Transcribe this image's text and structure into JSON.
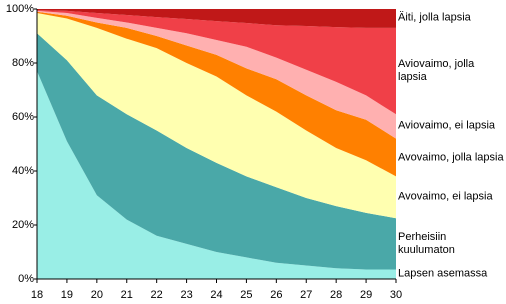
{
  "chart_data": {
    "type": "stacked_area",
    "x": [
      18,
      19,
      20,
      21,
      22,
      23,
      24,
      25,
      26,
      27,
      28,
      29,
      30
    ],
    "xlim": [
      18,
      30
    ],
    "xticks": [
      18,
      19,
      20,
      21,
      22,
      23,
      24,
      25,
      26,
      27,
      28,
      29,
      30
    ],
    "ylim": [
      0,
      100
    ],
    "yticks": [
      {
        "value": 0,
        "label": "0%"
      },
      {
        "value": 20,
        "label": "20%"
      },
      {
        "value": 40,
        "label": "40%"
      },
      {
        "value": 60,
        "label": "60%"
      },
      {
        "value": 80,
        "label": "80%"
      },
      {
        "value": 100,
        "label": "100%"
      }
    ],
    "series": [
      {
        "name": "Lapsen asemassa",
        "color": "#99eee6",
        "values": [
          77,
          51,
          31,
          22,
          16,
          13,
          10,
          8,
          6,
          5,
          4,
          3.5,
          3.5
        ]
      },
      {
        "name": "Perheisiin kuulumaton",
        "color": "#4aa8a8",
        "values": [
          14,
          30,
          37,
          39,
          39,
          35.5,
          33,
          30,
          28,
          25,
          23,
          21,
          19
        ]
      },
      {
        "name": "Avovaimo, ei lapsia",
        "color": "#ffffb0",
        "values": [
          7.5,
          15.5,
          25,
          28,
          30.5,
          31.5,
          32,
          30,
          28,
          25,
          21.5,
          19.5,
          15.5
        ]
      },
      {
        "name": "Avovaimo, jolla lapsia",
        "color": "#ff8000",
        "values": [
          0.5,
          1,
          2,
          4,
          4.5,
          6.5,
          8,
          10,
          12,
          13,
          14,
          15,
          14
        ]
      },
      {
        "name": "Aviovaimo, ei lapsia",
        "color": "#ffb0b0",
        "values": [
          0.3,
          1,
          1.7,
          2,
          3,
          4.5,
          5.5,
          8,
          8,
          9.5,
          10.5,
          9,
          9
        ]
      },
      {
        "name": "Aviovaimo, jolla lapsia",
        "color": "#f04048",
        "values": [
          0.3,
          0.8,
          1.8,
          2.8,
          4,
          5.3,
          7,
          8.8,
          12,
          16.2,
          20.3,
          25,
          32
        ]
      },
      {
        "name": "Äiti, jolla lapsia",
        "color": "#c01818",
        "values": [
          0.4,
          0.7,
          1.5,
          2.2,
          3,
          3.7,
          4.5,
          5.2,
          6,
          6.3,
          6.7,
          7,
          7
        ]
      }
    ]
  }
}
